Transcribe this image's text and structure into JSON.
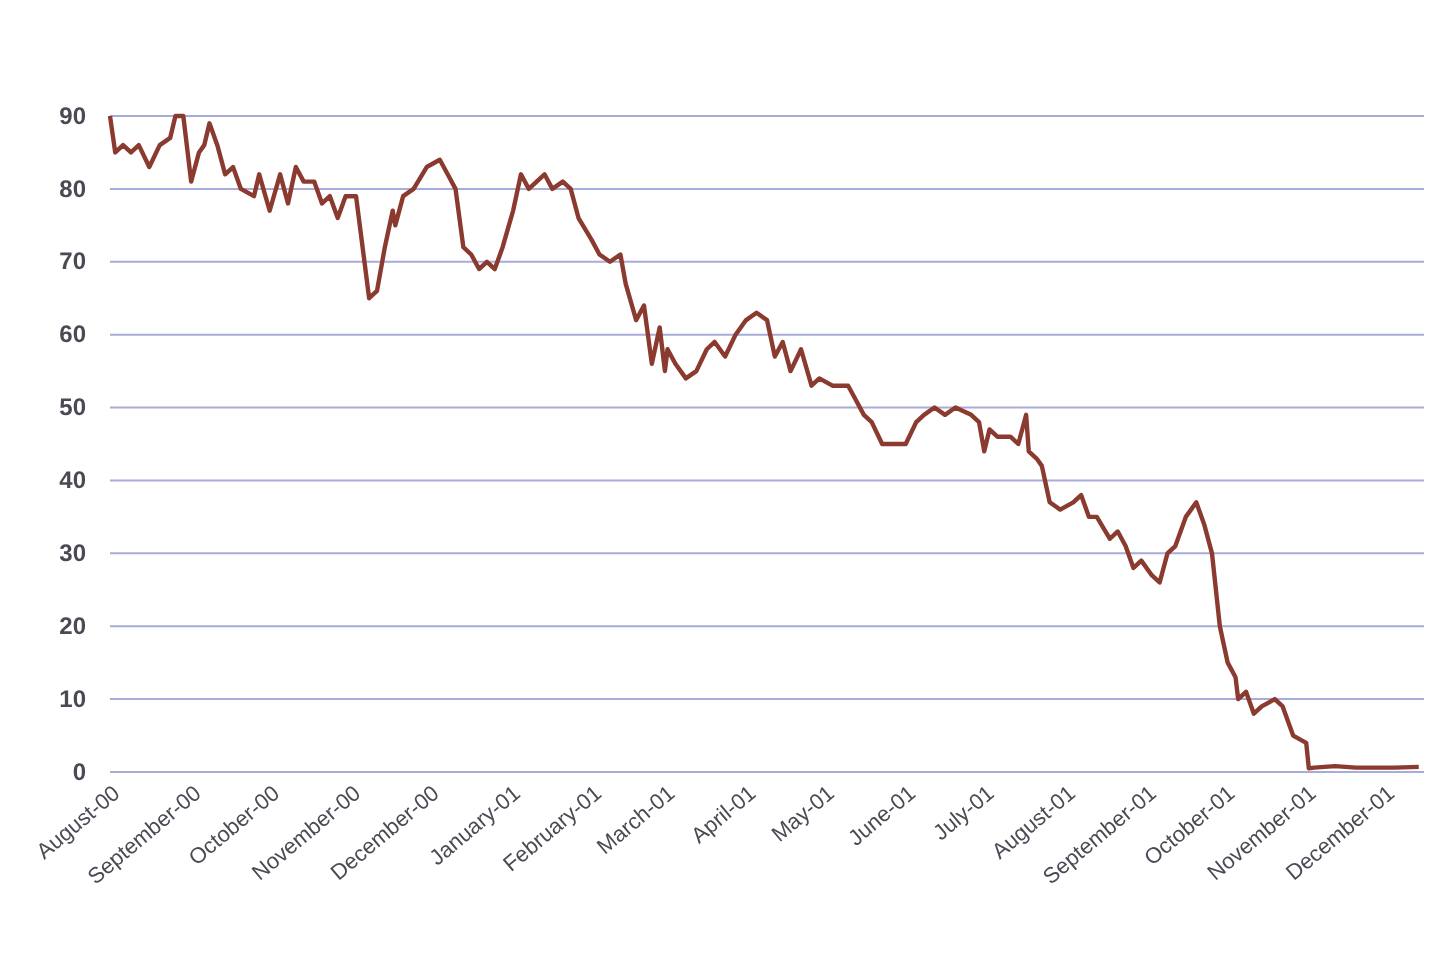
{
  "chart_data": {
    "type": "line",
    "grid": "y",
    "legend": false,
    "marker": "none",
    "line_style": "solid",
    "ylim": [
      0,
      90
    ],
    "yticks": [
      0,
      10,
      20,
      30,
      40,
      50,
      60,
      70,
      80,
      90
    ],
    "xlim": [
      "2000-08-01",
      "2001-12-16"
    ],
    "xticks": [
      {
        "value": "2000-08-01",
        "label": "August-00"
      },
      {
        "value": "2000-09-01",
        "label": "September-00"
      },
      {
        "value": "2000-10-01",
        "label": "October-00"
      },
      {
        "value": "2000-11-01",
        "label": "November-00"
      },
      {
        "value": "2000-12-01",
        "label": "December-00"
      },
      {
        "value": "2001-01-01",
        "label": "January-01"
      },
      {
        "value": "2001-02-01",
        "label": "February-01"
      },
      {
        "value": "2001-03-01",
        "label": "March-01"
      },
      {
        "value": "2001-04-01",
        "label": "April-01"
      },
      {
        "value": "2001-05-01",
        "label": "May-01"
      },
      {
        "value": "2001-06-01",
        "label": "June-01"
      },
      {
        "value": "2001-07-01",
        "label": "July-01"
      },
      {
        "value": "2001-08-01",
        "label": "August-01"
      },
      {
        "value": "2001-09-01",
        "label": "September-01"
      },
      {
        "value": "2001-10-01",
        "label": "October-01"
      },
      {
        "value": "2001-11-01",
        "label": "November-01"
      },
      {
        "value": "2001-12-01",
        "label": "December-01"
      }
    ],
    "series": [
      {
        "color": "#8b3a2f",
        "x": [
          "2000-08-01",
          "2000-08-03",
          "2000-08-06",
          "2000-08-09",
          "2000-08-12",
          "2000-08-16",
          "2000-08-20",
          "2000-08-24",
          "2000-08-26",
          "2000-08-29",
          "2000-09-01",
          "2000-09-04",
          "2000-09-06",
          "2000-09-08",
          "2000-09-11",
          "2000-09-14",
          "2000-09-17",
          "2000-09-20",
          "2000-09-25",
          "2000-09-27",
          "2000-10-01",
          "2000-10-05",
          "2000-10-08",
          "2000-10-11",
          "2000-10-14",
          "2000-10-18",
          "2000-10-21",
          "2000-10-24",
          "2000-10-27",
          "2000-10-30",
          "2000-11-03",
          "2000-11-08",
          "2000-11-11",
          "2000-11-14",
          "2000-11-17",
          "2000-11-18",
          "2000-11-21",
          "2000-11-25",
          "2000-11-30",
          "2000-12-05",
          "2000-12-08",
          "2000-12-11",
          "2000-12-14",
          "2000-12-17",
          "2000-12-20",
          "2000-12-23",
          "2000-12-26",
          "2000-12-29",
          "2001-01-02",
          "2001-01-05",
          "2001-01-08",
          "2001-01-11",
          "2001-01-14",
          "2001-01-17",
          "2001-01-21",
          "2001-01-24",
          "2001-01-27",
          "2001-02-01",
          "2001-02-04",
          "2001-02-08",
          "2001-02-12",
          "2001-02-14",
          "2001-02-18",
          "2001-02-21",
          "2001-02-24",
          "2001-02-27",
          "2001-03-01",
          "2001-03-02",
          "2001-03-05",
          "2001-03-09",
          "2001-03-13",
          "2001-03-17",
          "2001-03-20",
          "2001-03-24",
          "2001-03-28",
          "2001-04-01",
          "2001-04-05",
          "2001-04-09",
          "2001-04-12",
          "2001-04-15",
          "2001-04-18",
          "2001-04-22",
          "2001-04-26",
          "2001-04-29",
          "2001-05-04",
          "2001-05-10",
          "2001-05-13",
          "2001-05-16",
          "2001-05-19",
          "2001-05-23",
          "2001-05-27",
          "2001-06-01",
          "2001-06-05",
          "2001-06-08",
          "2001-06-12",
          "2001-06-16",
          "2001-06-20",
          "2001-06-26",
          "2001-06-29",
          "2001-07-01",
          "2001-07-03",
          "2001-07-06",
          "2001-07-11",
          "2001-07-14",
          "2001-07-17",
          "2001-07-18",
          "2001-07-21",
          "2001-07-23",
          "2001-07-26",
          "2001-07-30",
          "2001-08-04",
          "2001-08-07",
          "2001-08-10",
          "2001-08-13",
          "2001-08-18",
          "2001-08-21",
          "2001-08-24",
          "2001-08-27",
          "2001-08-30",
          "2001-09-03",
          "2001-09-06",
          "2001-09-09",
          "2001-09-12",
          "2001-09-16",
          "2001-09-20",
          "2001-09-23",
          "2001-09-26",
          "2001-09-29",
          "2001-10-02",
          "2001-10-05",
          "2001-10-06",
          "2001-10-09",
          "2001-10-12",
          "2001-10-15",
          "2001-10-20",
          "2001-10-23",
          "2001-10-27",
          "2001-11-01",
          "2001-11-02",
          "2001-11-04",
          "2001-11-12",
          "2001-11-20",
          "2001-12-05",
          "2001-12-14"
        ],
        "values": [
          90,
          85,
          86,
          85,
          86,
          83,
          86,
          87,
          90,
          90,
          81,
          85,
          86,
          89,
          86,
          82,
          83,
          80,
          79,
          82,
          77,
          82,
          78,
          83,
          81,
          81,
          78,
          79,
          76,
          79,
          79,
          65,
          66,
          72,
          77,
          75,
          79,
          80,
          83,
          84,
          82,
          80,
          72,
          71,
          69,
          70,
          69,
          72,
          77,
          82,
          80,
          81,
          82,
          80,
          81,
          80,
          76,
          73,
          71,
          70,
          71,
          67,
          62,
          64,
          56,
          61,
          55,
          58,
          56,
          54,
          55,
          58,
          59,
          57,
          60,
          62,
          63,
          62,
          57,
          59,
          55,
          58,
          53,
          54,
          53,
          53,
          51,
          49,
          48,
          45,
          45,
          45,
          48,
          49,
          50,
          49,
          50,
          49,
          48,
          44,
          47,
          46,
          46,
          45,
          49,
          44,
          43,
          42,
          37,
          36,
          37,
          38,
          35,
          35,
          32,
          33,
          31,
          28,
          29,
          27,
          26,
          30,
          31,
          35,
          37,
          34,
          30,
          20,
          15,
          13,
          10,
          11,
          8,
          9,
          10,
          9,
          5,
          4,
          0.5,
          0.6,
          0.8,
          0.6,
          0.6,
          0.7
        ]
      }
    ]
  }
}
